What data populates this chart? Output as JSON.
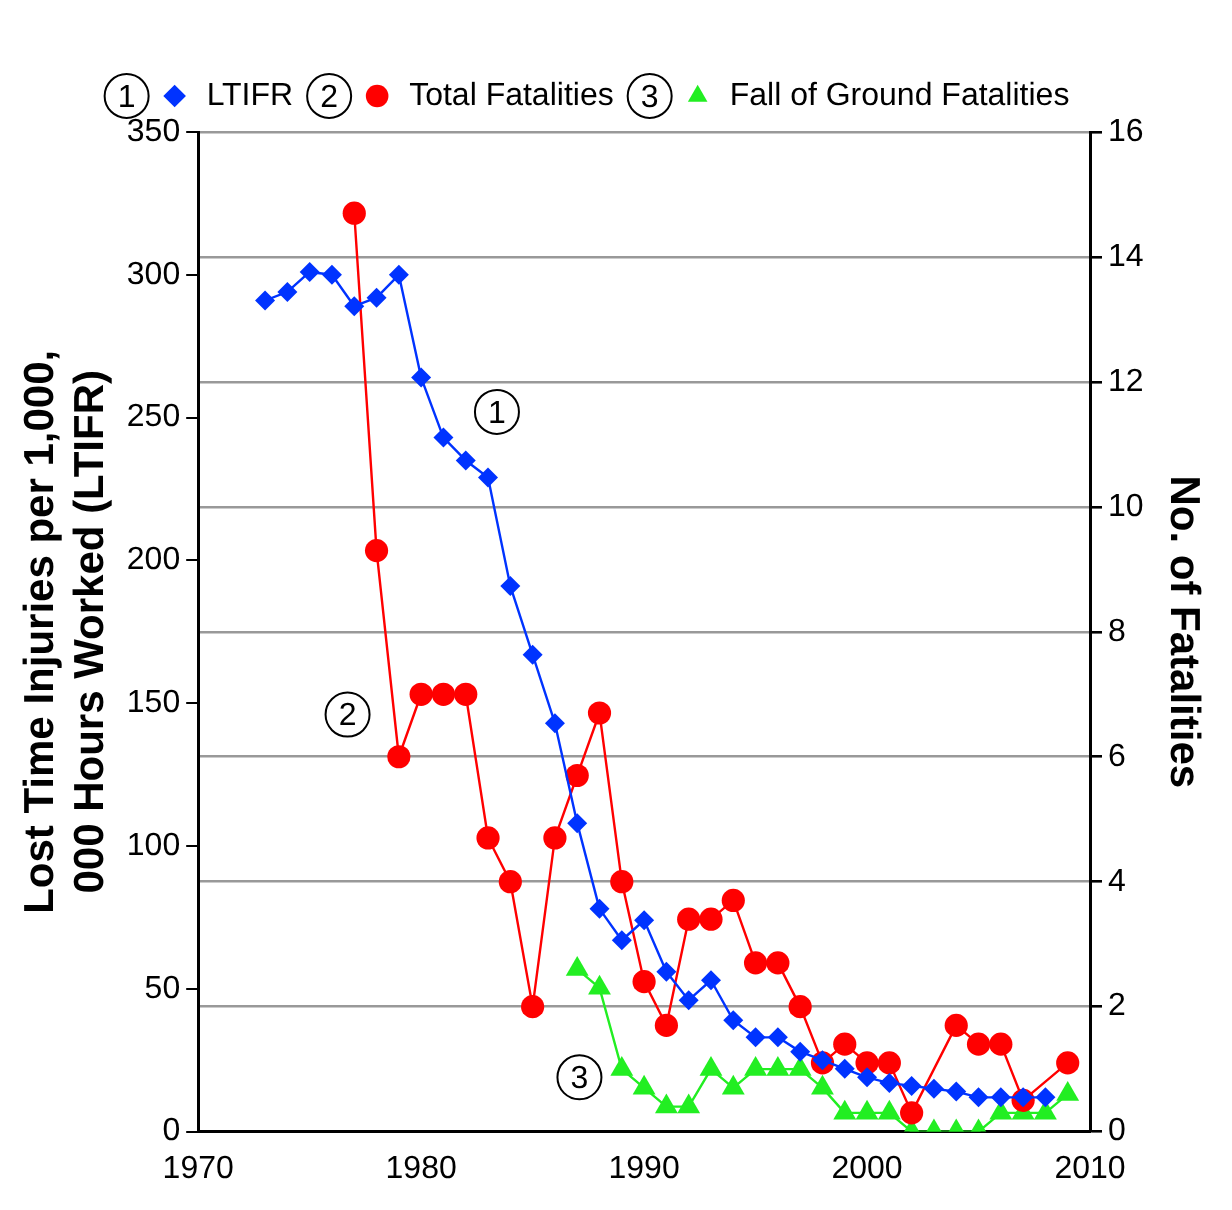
{
  "chart_data": {
    "type": "line",
    "xlabel": null,
    "ylabel": "Lost Time Injuries per 1,000, 000 Hours Worked (LTIFR)",
    "y2label": "No. of Fatalities",
    "xlim": [
      1970,
      2010
    ],
    "xticks": [
      1970,
      1980,
      1990,
      2000,
      2010
    ],
    "ylim": [
      0,
      350
    ],
    "yticks": [
      0,
      50,
      100,
      150,
      200,
      250,
      300,
      350
    ],
    "y2lim": [
      0,
      16
    ],
    "y2ticks": [
      0,
      2,
      4,
      6,
      8,
      10,
      12,
      14,
      16
    ],
    "grid": "y2",
    "legend": "top",
    "line_style": "solid",
    "series": [
      {
        "name": "LTIFR",
        "color": "#0033ff",
        "marker": "diamond",
        "x": [
          1973,
          1974,
          1975,
          1976,
          1977,
          1978,
          1979,
          1980,
          1981,
          1982,
          1983,
          1984,
          1985,
          1986,
          1987,
          1988,
          1989,
          1990,
          1991,
          1992,
          1993,
          1994,
          1995,
          1996,
          1997,
          1998,
          1999,
          2000,
          2001,
          2002,
          2003,
          2004,
          2005,
          2006,
          2007,
          2008
        ],
        "values": [
          291,
          294,
          301,
          300,
          289,
          292,
          300,
          264,
          243,
          235,
          229,
          191,
          167,
          143,
          108,
          78,
          67,
          74,
          56,
          46,
          53,
          39,
          33,
          33,
          28,
          25,
          22,
          19,
          17,
          16,
          15,
          14,
          12,
          12,
          12,
          12
        ]
      },
      {
        "name": "Total Fatalities",
        "color": "#ff0000",
        "marker": "circle",
        "axis": "y2",
        "x": [
          1977,
          1978,
          1979,
          1980,
          1981,
          1982,
          1983,
          1984,
          1985,
          1986,
          1987,
          1988,
          1989,
          1990,
          1991,
          1992,
          1993,
          1994,
          1995,
          1996,
          1997,
          1998,
          1999,
          2000,
          2001,
          2002,
          2004,
          2005,
          2006,
          2007,
          2009
        ],
        "values": [
          14.7,
          9.3,
          6.0,
          7.0,
          7.0,
          7.0,
          4.7,
          4.0,
          2.0,
          4.7,
          5.7,
          6.7,
          4.0,
          2.4,
          1.7,
          3.4,
          3.4,
          3.7,
          2.7,
          2.7,
          2.0,
          1.1,
          1.4,
          1.1,
          1.1,
          0.3,
          1.7,
          1.4,
          1.4,
          0.5,
          1.1
        ]
      },
      {
        "name": "Fall of Ground Fatalities",
        "color": "#22ee22",
        "marker": "triangle",
        "axis": "y2",
        "x": [
          1987,
          1988,
          1989,
          1990,
          1991,
          1992,
          1993,
          1994,
          1995,
          1996,
          1997,
          1998,
          1999,
          2000,
          2001,
          2002,
          2003,
          2004,
          2005,
          2006,
          2007,
          2008,
          2009
        ],
        "values": [
          2.6,
          2.3,
          1.0,
          0.7,
          0.4,
          0.4,
          1.0,
          0.7,
          1.0,
          1.0,
          1.0,
          0.7,
          0.3,
          0.3,
          0.3,
          0,
          0,
          0,
          0,
          0.3,
          0.3,
          0.3,
          0.6
        ]
      }
    ],
    "annotations": [
      {
        "text": "1",
        "x": 1983.4,
        "y": 252
      },
      {
        "text": "2",
        "x": 1976.7,
        "y": 146
      },
      {
        "text": "3",
        "x": 1987.1,
        "y": 19
      }
    ]
  }
}
